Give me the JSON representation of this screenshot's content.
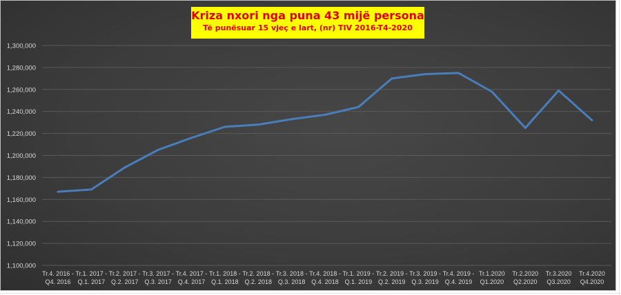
{
  "chart_data": {
    "type": "line",
    "title": "Kriza nxori nga puna 43 mijë persona",
    "subtitle": "Të punësuar 15 vjeç e lart, (nr) TIV 2016-T4-2020",
    "xlabel": "",
    "ylabel": "",
    "ylim": [
      1100000,
      1300000
    ],
    "yticks": [
      1100000,
      1120000,
      1140000,
      1160000,
      1180000,
      1200000,
      1220000,
      1240000,
      1260000,
      1280000,
      1300000
    ],
    "ytick_labels": [
      "1,100,000",
      "1,120,000",
      "1,140,000",
      "1,160,000",
      "1,180,000",
      "1,200,000",
      "1,220,000",
      "1,240,000",
      "1,260,000",
      "1,280,000",
      "1,300,000"
    ],
    "grid": true,
    "legend": "none",
    "categories": [
      [
        "Tr.4. 2016 -",
        "Q4. 2016"
      ],
      [
        "Tr.1. 2017 -",
        "Q.1. 2017"
      ],
      [
        "Tr.2. 2017 -",
        "Q.2. 2017"
      ],
      [
        "Tr.3. 2017 -",
        "Q.3. 2017"
      ],
      [
        "Tr.4. 2017 -",
        "Q.4. 2017"
      ],
      [
        "Tr.1. 2018 -",
        "Q.1. 2018"
      ],
      [
        "Tr.2. 2018 -",
        "Q.2. 2018"
      ],
      [
        "Tr.3. 2018 -",
        "Q.3. 2018"
      ],
      [
        "Tr.4. 2018 -",
        "Q.4. 2018"
      ],
      [
        "Tr.1. 2019 -",
        "Q.1. 2019"
      ],
      [
        "Tr.2. 2019 -",
        "Q.2. 2019"
      ],
      [
        "Tr.3. 2019 -",
        "Q.3. 2019"
      ],
      [
        "Tr.4. 2019 -",
        "Q.4. 2019"
      ],
      [
        "Tr.1.2020",
        "Q1.2020"
      ],
      [
        "Tr.2.2020",
        "Q2.2020"
      ],
      [
        "Tr.3.2020",
        "Q3.2020"
      ],
      [
        "Tr.4.2020",
        "Q4.2020"
      ]
    ],
    "series": [
      {
        "values": [
          1167000,
          1169000,
          1189000,
          1205000,
          1216000,
          1226000,
          1228000,
          1233000,
          1237000,
          1244000,
          1270000,
          1274000,
          1275000,
          1258000,
          1225000,
          1259000,
          1232000
        ]
      }
    ],
    "colors": {
      "line": "#4a7ebb",
      "gridline": "#5a5a5a",
      "title_bg": "#ffff00",
      "title_text": "#e00000"
    }
  }
}
